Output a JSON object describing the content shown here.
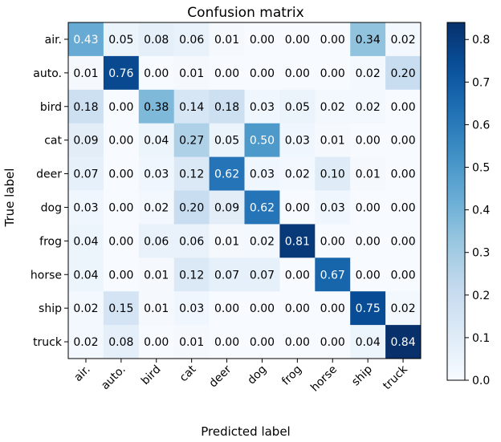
{
  "chart_data": {
    "type": "heatmap",
    "title": "Confusion matrix",
    "xlabel": "Predicted label",
    "ylabel": "True label",
    "x_categories": [
      "air.",
      "auto.",
      "bird",
      "cat",
      "deer",
      "dog",
      "frog",
      "horse",
      "ship",
      "truck"
    ],
    "y_categories": [
      "air.",
      "auto.",
      "bird",
      "cat",
      "deer",
      "dog",
      "frog",
      "horse",
      "ship",
      "truck"
    ],
    "values": [
      [
        0.43,
        0.05,
        0.08,
        0.06,
        0.01,
        0.0,
        0.0,
        0.0,
        0.34,
        0.02
      ],
      [
        0.01,
        0.76,
        0.0,
        0.01,
        0.0,
        0.0,
        0.0,
        0.0,
        0.02,
        0.2
      ],
      [
        0.18,
        0.0,
        0.38,
        0.14,
        0.18,
        0.03,
        0.05,
        0.02,
        0.02,
        0.0
      ],
      [
        0.09,
        0.0,
        0.04,
        0.27,
        0.05,
        0.5,
        0.03,
        0.01,
        0.0,
        0.0
      ],
      [
        0.07,
        0.0,
        0.03,
        0.12,
        0.62,
        0.03,
        0.02,
        0.1,
        0.01,
        0.0
      ],
      [
        0.03,
        0.0,
        0.02,
        0.2,
        0.09,
        0.62,
        0.0,
        0.03,
        0.0,
        0.0
      ],
      [
        0.04,
        0.0,
        0.06,
        0.06,
        0.01,
        0.02,
        0.81,
        0.0,
        0.0,
        0.0
      ],
      [
        0.04,
        0.0,
        0.01,
        0.12,
        0.07,
        0.07,
        0.0,
        0.67,
        0.0,
        0.0
      ],
      [
        0.02,
        0.15,
        0.01,
        0.03,
        0.0,
        0.0,
        0.0,
        0.0,
        0.75,
        0.02
      ],
      [
        0.02,
        0.08,
        0.0,
        0.01,
        0.0,
        0.0,
        0.0,
        0.0,
        0.04,
        0.84
      ]
    ],
    "colormap": "Blues",
    "color_range": [
      0.0,
      0.84
    ],
    "colorbar_ticks": [
      0.0,
      0.1,
      0.2,
      0.3,
      0.4,
      0.5,
      0.6,
      0.7,
      0.8
    ],
    "x_tick_rotation": "45deg",
    "grid": false
  }
}
